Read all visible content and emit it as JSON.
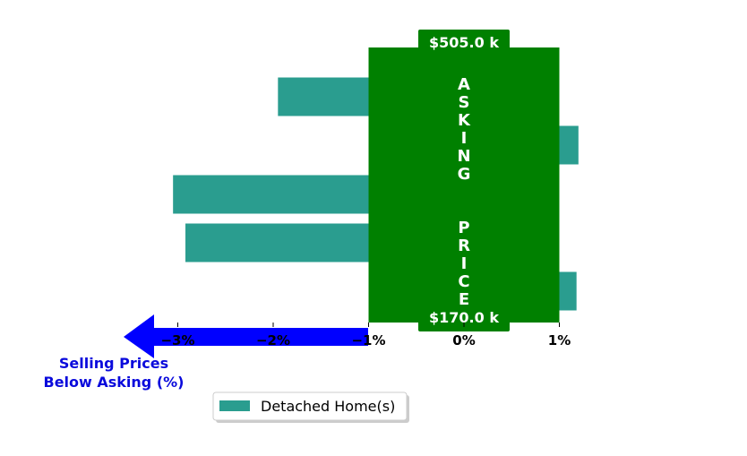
{
  "chart_data": {
    "type": "bar",
    "orientation": "horizontal",
    "series": [
      {
        "name": "Detached Home(s)",
        "values": [
          -1.95,
          1.2,
          -3.05,
          -2.92,
          1.18
        ],
        "color": "#2a9d8f"
      }
    ],
    "xlim": [
      -3.5,
      1.5
    ],
    "x_ticks": [
      -3,
      -2,
      -1,
      0,
      1
    ],
    "x_tick_labels": [
      "−3%",
      "−2%",
      "−1%",
      "0%",
      "1%"
    ],
    "asking_band": {
      "x_range": [
        -1,
        1
      ],
      "color": "#008000",
      "label_top": "$505.0 k",
      "label_bottom": "$170.0 k",
      "vertical_text": "ASKING  PRICE"
    },
    "below_arrow": {
      "color": "#0000ff",
      "label": "Selling Prices\nBelow Asking (%)"
    },
    "legend": {
      "placement": "bottom-center",
      "entries": [
        "Detached Home(s)"
      ]
    },
    "grid": false
  }
}
